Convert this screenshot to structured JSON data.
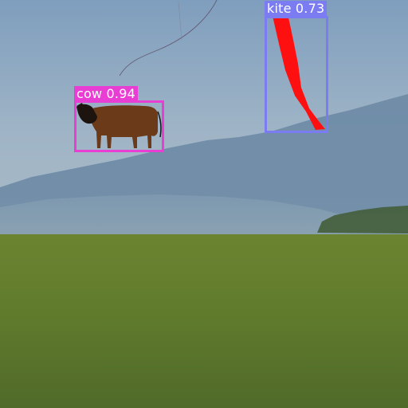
{
  "detections": [
    {
      "label": "cow 0.94",
      "class": "cow",
      "score": 0.94,
      "color": "#e93ed4"
    },
    {
      "label": "kite 0.73",
      "class": "kite",
      "score": 0.73,
      "color": "#7b7cf2"
    }
  ],
  "colors": {
    "sky_top": "#7f9cbb",
    "sky_bottom": "#a4b8c7",
    "mountain": "#5f7d9a",
    "field": "#5f7a2c",
    "kite": "#ff1010",
    "cow": "#6b3a18"
  }
}
